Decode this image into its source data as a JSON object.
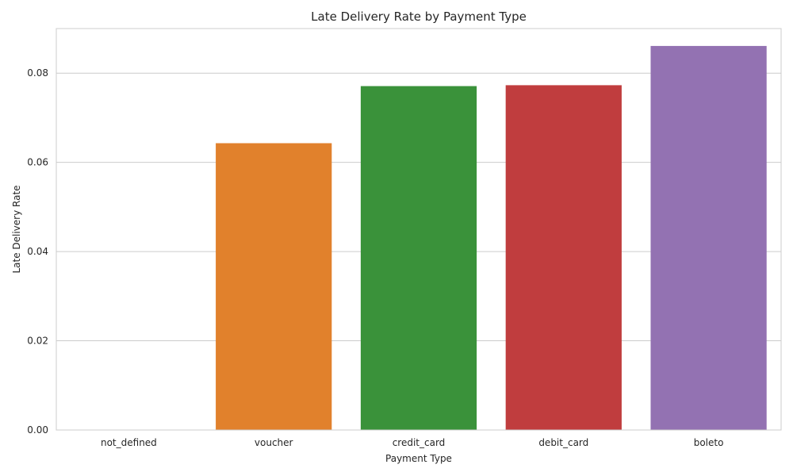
{
  "chart_data": {
    "type": "bar",
    "title": "Late Delivery Rate by Payment Type",
    "xlabel": "Payment Type",
    "ylabel": "Late Delivery Rate",
    "categories": [
      "not_defined",
      "voucher",
      "credit_card",
      "debit_card",
      "boleto"
    ],
    "values": [
      0.0,
      0.0643,
      0.0771,
      0.0773,
      0.0861
    ],
    "colors": [
      "#1f77b4",
      "#e1812c",
      "#3a923a",
      "#c03d3e",
      "#9372b2"
    ],
    "ylim": [
      0,
      0.09
    ],
    "yticks": [
      0.0,
      0.02,
      0.04,
      0.06,
      0.08
    ],
    "ytick_labels": [
      "0.00",
      "0.02",
      "0.04",
      "0.06",
      "0.08"
    ],
    "grid": "horizontal",
    "legend": "none"
  }
}
